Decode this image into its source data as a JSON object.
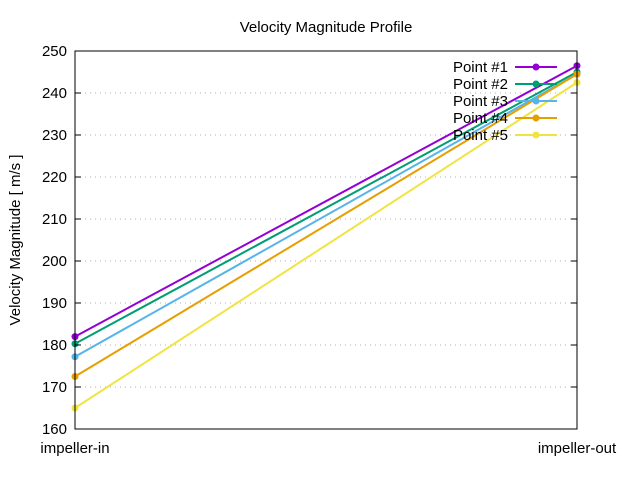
{
  "chart_data": {
    "type": "line",
    "title": "Velocity Magnitude Profile",
    "xlabel": "",
    "ylabel": "Velocity Magnitude [ m/s ]",
    "categories": [
      "impeller-in",
      "impeller-out"
    ],
    "ylim": [
      160,
      250
    ],
    "yticks": [
      160,
      170,
      180,
      190,
      200,
      210,
      220,
      230,
      240,
      250
    ],
    "grid": true,
    "legend_position": "top-right",
    "series": [
      {
        "name": "Point #1",
        "color": "#9400d3",
        "values": [
          182.0,
          246.5
        ]
      },
      {
        "name": "Point #2",
        "color": "#009e73",
        "values": [
          180.3,
          245.0
        ]
      },
      {
        "name": "Point #3",
        "color": "#56b4e9",
        "values": [
          177.2,
          244.5
        ]
      },
      {
        "name": "Point #4",
        "color": "#e69f00",
        "values": [
          172.5,
          244.5
        ]
      },
      {
        "name": "Point #5",
        "color": "#f0e442",
        "values": [
          165.0,
          242.5
        ]
      }
    ]
  }
}
